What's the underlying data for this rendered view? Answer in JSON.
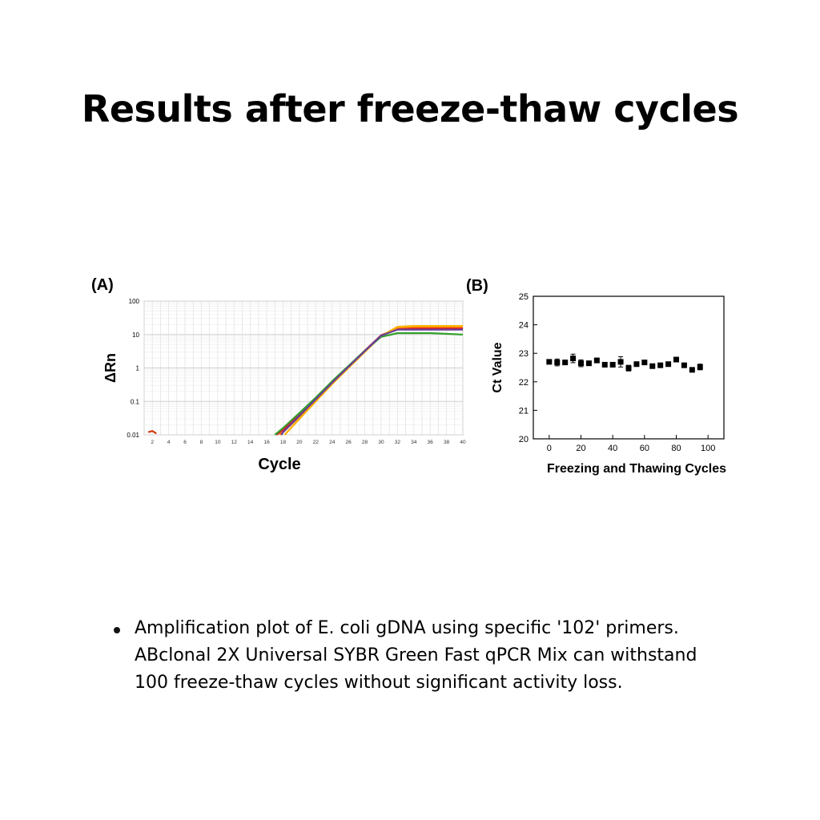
{
  "title": "Results after freeze-thaw cycles",
  "caption": "Amplification plot of E. coli gDNA using specific '102' primers. ABclonal 2X Universal SYBR Green Fast qPCR Mix can withstand 100 freeze-thaw cycles without significant activity loss.",
  "chart_data": [
    {
      "panel_label": "(A)",
      "type": "line",
      "xlabel": "Cycle",
      "ylabel": "ΔRn",
      "xlim": [
        1,
        40
      ],
      "ylim": [
        0.01,
        100
      ],
      "yscale": "log",
      "grid": true,
      "xticks": [
        2,
        4,
        6,
        8,
        10,
        12,
        14,
        16,
        18,
        20,
        22,
        24,
        26,
        28,
        30,
        32,
        34,
        36,
        38,
        40
      ],
      "yticks": [
        0.01,
        0.1,
        1,
        10,
        100
      ],
      "ytick_labels": [
        "0.01",
        "0.1",
        "1",
        "10",
        "100"
      ],
      "series": [
        {
          "color": "#e31a1c",
          "x": [
            17.2,
            18,
            20,
            22,
            24,
            26,
            28,
            30,
            32,
            34,
            36,
            38,
            40
          ],
          "y": [
            0.01,
            0.014,
            0.04,
            0.12,
            0.38,
            1.1,
            3.3,
            9.5,
            15,
            15.5,
            15.5,
            15.5,
            15.5
          ]
        },
        {
          "color": "#ff7f00",
          "x": [
            17.6,
            18,
            20,
            22,
            24,
            26,
            28,
            30,
            32,
            34,
            36,
            38,
            40
          ],
          "y": [
            0.01,
            0.012,
            0.035,
            0.11,
            0.35,
            1.05,
            3.1,
            9.2,
            16,
            17,
            17,
            17,
            17
          ]
        },
        {
          "color": "#ffb000",
          "x": [
            18.2,
            20,
            22,
            24,
            26,
            28,
            30,
            32,
            34,
            36,
            38,
            40
          ],
          "y": [
            0.01,
            0.03,
            0.1,
            0.33,
            1.0,
            3.0,
            9.0,
            17,
            18,
            18,
            18,
            18
          ]
        },
        {
          "color": "#33a02c",
          "x": [
            17.0,
            18,
            20,
            22,
            24,
            26,
            28,
            30,
            32,
            34,
            36,
            38,
            40
          ],
          "y": [
            0.01,
            0.016,
            0.045,
            0.13,
            0.4,
            1.15,
            3.3,
            8.5,
            11,
            11,
            11,
            10.5,
            10
          ]
        },
        {
          "color": "#6a3d9a",
          "x": [
            17.8,
            18,
            20,
            22,
            24,
            26,
            28,
            30,
            32,
            34,
            36,
            38,
            40
          ],
          "y": [
            0.01,
            0.012,
            0.037,
            0.115,
            0.36,
            1.08,
            3.2,
            9.3,
            14,
            14,
            14,
            14,
            14
          ]
        },
        {
          "color": "#d63a0f",
          "x": [
            1.5,
            2,
            2.5
          ],
          "y": [
            0.012,
            0.013,
            0.011
          ]
        }
      ]
    },
    {
      "panel_label": "(B)",
      "type": "scatter",
      "xlabel": "Freezing and Thawing Cycles",
      "ylabel": "Ct Value",
      "xlim": [
        -10,
        110
      ],
      "ylim": [
        20,
        25
      ],
      "xticks": [
        0,
        20,
        40,
        60,
        80,
        100
      ],
      "yticks": [
        20,
        21,
        22,
        23,
        24,
        25
      ],
      "grid": false,
      "x": [
        0,
        5,
        10,
        15,
        20,
        25,
        30,
        35,
        40,
        45,
        50,
        55,
        60,
        65,
        70,
        75,
        80,
        85,
        90,
        95
      ],
      "y": [
        22.7,
        22.68,
        22.68,
        22.82,
        22.65,
        22.65,
        22.75,
        22.6,
        22.6,
        22.7,
        22.48,
        22.62,
        22.68,
        22.55,
        22.58,
        22.62,
        22.78,
        22.58,
        22.42,
        22.52
      ],
      "error": [
        0.05,
        0.12,
        0.05,
        0.15,
        0.12,
        0.05,
        0.08,
        0.05,
        0.05,
        0.18,
        0.1,
        0.05,
        0.06,
        0.05,
        0.05,
        0.05,
        0.06,
        0.05,
        0.05,
        0.1
      ]
    }
  ]
}
